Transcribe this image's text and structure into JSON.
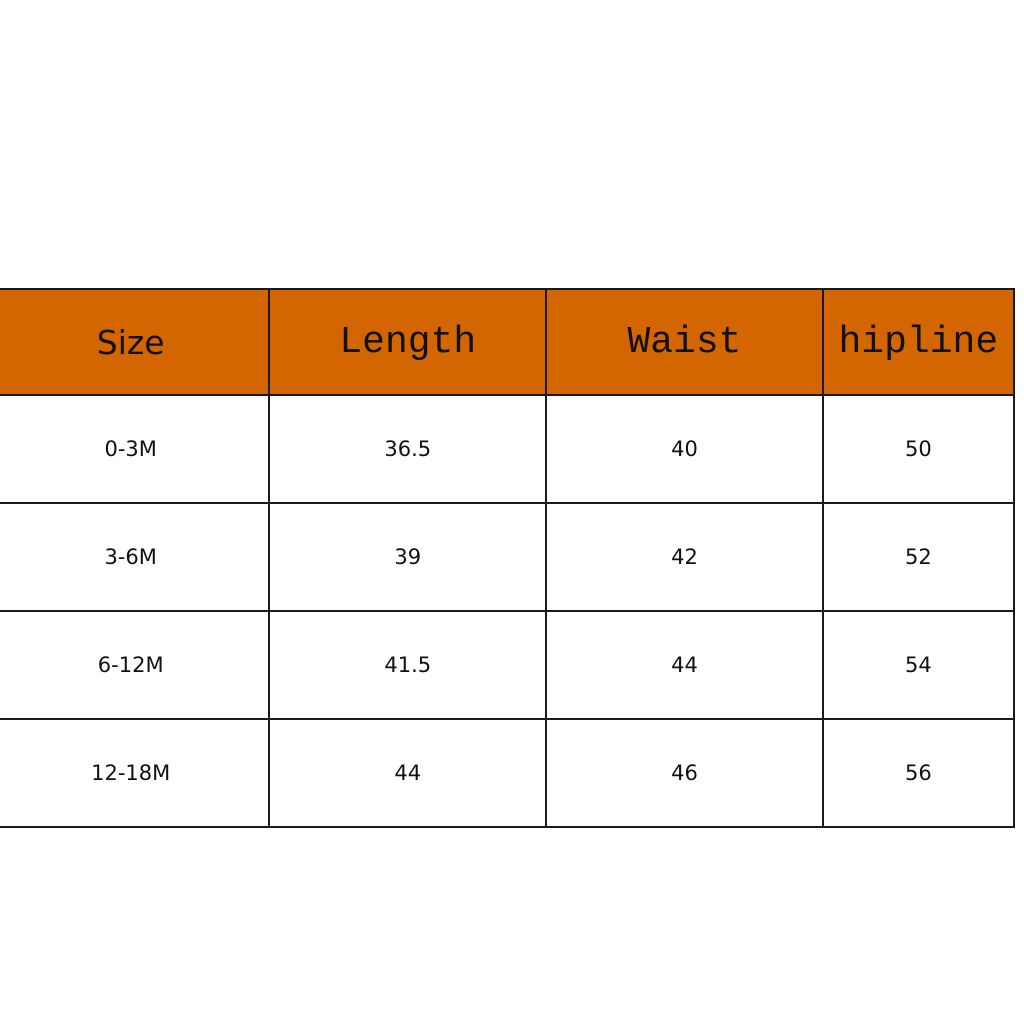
{
  "table": {
    "header": [
      "Size",
      "Length",
      "Waist",
      "hipline"
    ],
    "rows": [
      [
        "0-3M",
        "36.5",
        "40",
        "50"
      ],
      [
        "3-6M",
        "39",
        "42",
        "52"
      ],
      [
        "6-12M",
        "41.5",
        "44",
        "54"
      ],
      [
        "12-18M",
        "44",
        "46",
        "56"
      ]
    ]
  }
}
